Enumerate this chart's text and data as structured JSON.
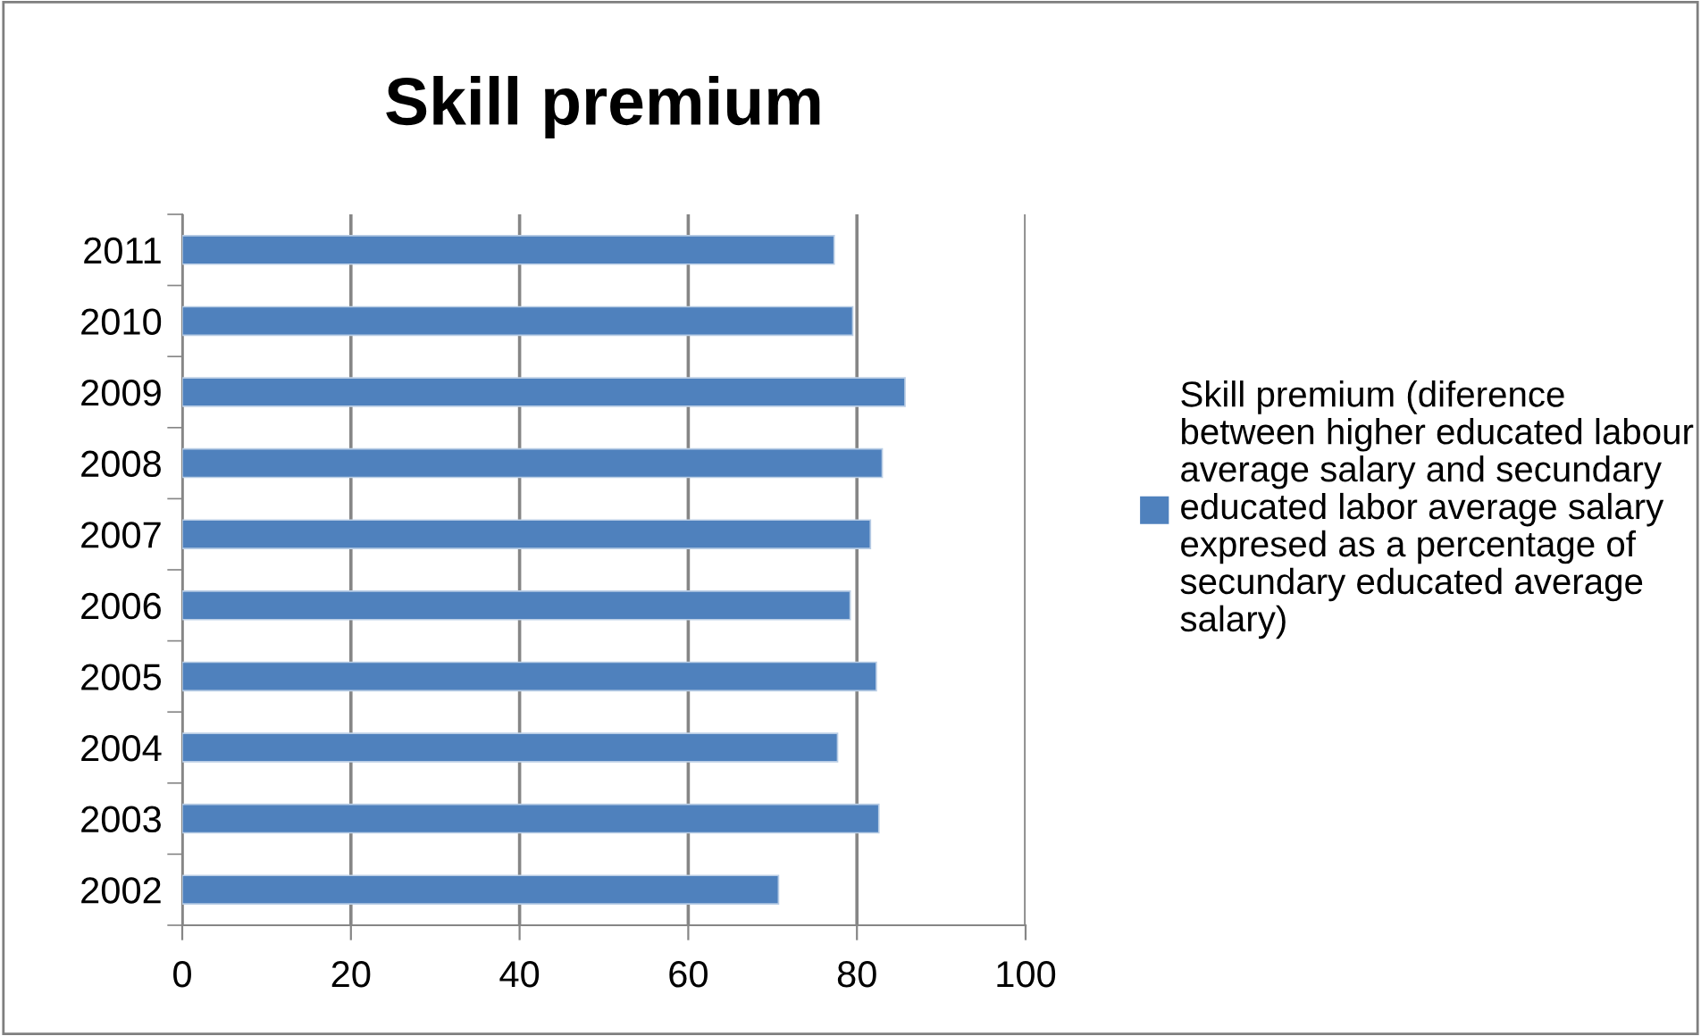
{
  "chart_data": {
    "type": "bar",
    "orientation": "horizontal",
    "title": "Skill premium",
    "categories": [
      "2011",
      "2010",
      "2009",
      "2008",
      "2007",
      "2006",
      "2005",
      "2004",
      "2003",
      "2002"
    ],
    "series": [
      {
        "name": "Skill premium (diference between higher educated labour average salary and secundary educated labor average salary expresed as a percentage of secundary educated average salary)",
        "color": "#4f81bd",
        "values": [
          77.3,
          79.5,
          85.7,
          83.0,
          81.6,
          79.2,
          82.3,
          77.7,
          82.6,
          70.7
        ]
      }
    ],
    "xlim": [
      0,
      100
    ],
    "xticks": [
      0,
      20,
      40,
      60,
      80,
      100
    ],
    "grid": "x",
    "legend": "right"
  }
}
